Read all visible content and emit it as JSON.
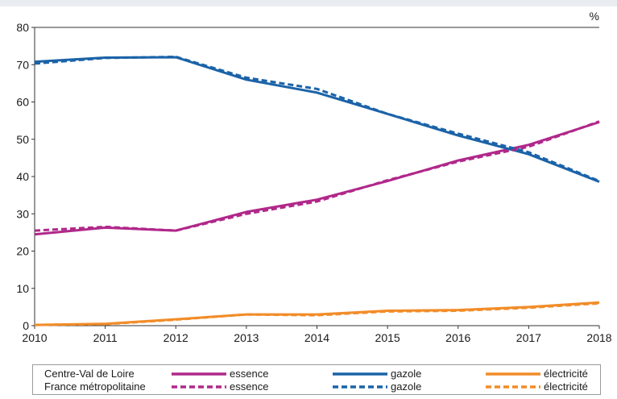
{
  "chart_data": {
    "type": "line",
    "unit_label": "%",
    "x": [
      2010,
      2011,
      2012,
      2013,
      2014,
      2015,
      2016,
      2017,
      2018
    ],
    "ylim": [
      0,
      80
    ],
    "yticks": [
      0,
      10,
      20,
      30,
      40,
      50,
      60,
      70,
      80
    ],
    "grid": false,
    "series": [
      {
        "name": "essence",
        "group": "Centre-Val de Loire",
        "style": "solid",
        "color": "#b0288a",
        "values": [
          24.5,
          26.3,
          25.5,
          30.5,
          33.8,
          38.8,
          44.3,
          48.5,
          54.6
        ]
      },
      {
        "name": "gazole",
        "group": "Centre-Val de Loire",
        "style": "solid",
        "color": "#1b63a8",
        "values": [
          70.8,
          71.9,
          72.0,
          66.0,
          62.5,
          56.8,
          51.0,
          46.0,
          38.6
        ]
      },
      {
        "name": "électricité",
        "group": "Centre-Val de Loire",
        "style": "solid",
        "color": "#f28c28",
        "values": [
          0.2,
          0.5,
          1.7,
          3.0,
          3.0,
          4.0,
          4.2,
          5.0,
          6.2
        ]
      },
      {
        "name": "essence",
        "group": "France métropolitaine",
        "style": "dashed",
        "color": "#b0288a",
        "values": [
          25.5,
          26.5,
          25.5,
          30.0,
          33.3,
          39.0,
          44.0,
          48.0,
          54.8
        ]
      },
      {
        "name": "gazole",
        "group": "France métropolitaine",
        "style": "dashed",
        "color": "#1b63a8",
        "values": [
          70.3,
          71.8,
          72.1,
          66.5,
          63.5,
          56.8,
          51.5,
          46.5,
          38.8
        ]
      },
      {
        "name": "électricité",
        "group": "France métropolitaine",
        "style": "dashed",
        "color": "#f28c28",
        "values": [
          0.2,
          0.4,
          1.6,
          3.0,
          2.8,
          3.8,
          4.0,
          4.8,
          6.0
        ]
      }
    ]
  },
  "legend": {
    "rows": [
      {
        "region": "Centre-Val de Loire",
        "style": "solid",
        "items": [
          {
            "label": "essence",
            "color": "#b0288a"
          },
          {
            "label": "gazole",
            "color": "#1b63a8"
          },
          {
            "label": "électricité",
            "color": "#f28c28"
          }
        ]
      },
      {
        "region": "France métropolitaine",
        "style": "dashed",
        "items": [
          {
            "label": "essence",
            "color": "#b0288a"
          },
          {
            "label": "gazole",
            "color": "#1b63a8"
          },
          {
            "label": "électricité",
            "color": "#f28c28"
          }
        ]
      }
    ]
  }
}
